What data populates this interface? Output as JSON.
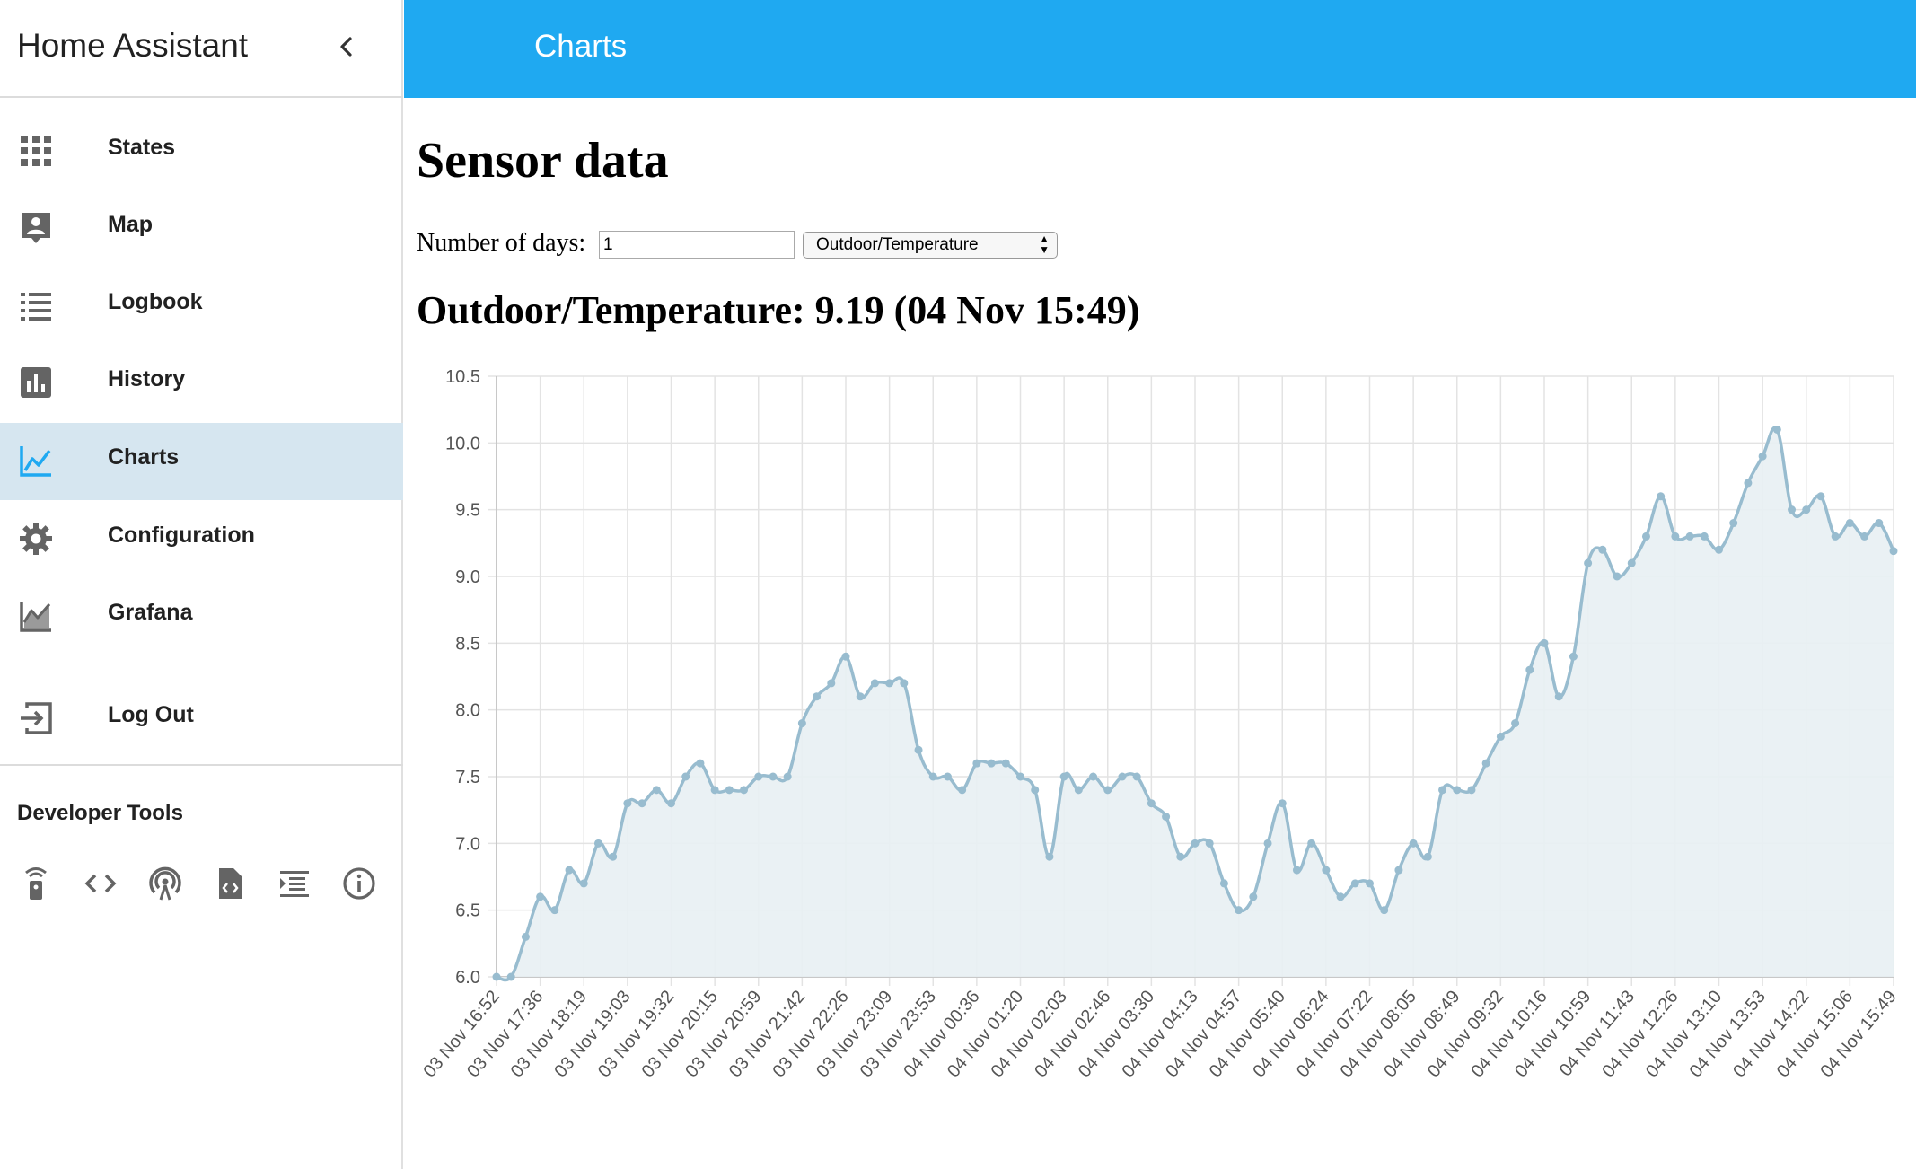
{
  "sidebar": {
    "title": "Home Assistant",
    "items": [
      {
        "label": "States",
        "icon": "grid-icon"
      },
      {
        "label": "Map",
        "icon": "map-person-icon"
      },
      {
        "label": "Logbook",
        "icon": "list-icon"
      },
      {
        "label": "History",
        "icon": "bar-chart-icon"
      },
      {
        "label": "Charts",
        "icon": "line-chart-icon",
        "active": true
      },
      {
        "label": "Configuration",
        "icon": "gear-icon"
      },
      {
        "label": "Grafana",
        "icon": "area-chart-icon"
      },
      {
        "label": "Log Out",
        "icon": "logout-icon"
      }
    ],
    "dev_tools_title": "Developer Tools",
    "dev_tools_icons": [
      "remote-icon",
      "code-icon",
      "broadcast-icon",
      "file-code-icon",
      "template-icon",
      "info-icon"
    ]
  },
  "topbar": {
    "title": "Charts"
  },
  "main": {
    "heading": "Sensor data",
    "days_label": "Number of days:",
    "days_value": "1",
    "selected_sensor": "Outdoor/Temperature",
    "reading_heading": "Outdoor/Temperature: 9.19 (04 Nov 15:49)"
  },
  "colors": {
    "accent": "#1fa9f1",
    "active_item_bg": "#d6e6f0",
    "line": "#98bccf",
    "fill": "#e8eff3"
  },
  "chart_data": {
    "type": "line",
    "ylim": [
      6.0,
      10.5
    ],
    "yticks": [
      "6.0",
      "6.5",
      "7.0",
      "7.5",
      "8.0",
      "8.5",
      "9.0",
      "9.5",
      "10.0",
      "10.5"
    ],
    "xticks": [
      "03 Nov 16:52",
      "03 Nov 17:36",
      "03 Nov 18:19",
      "03 Nov 19:03",
      "03 Nov 19:32",
      "03 Nov 20:15",
      "03 Nov 20:59",
      "03 Nov 21:42",
      "03 Nov 22:26",
      "03 Nov 23:09",
      "03 Nov 23:53",
      "04 Nov 00:36",
      "04 Nov 01:20",
      "04 Nov 02:03",
      "04 Nov 02:46",
      "04 Nov 03:30",
      "04 Nov 04:13",
      "04 Nov 04:57",
      "04 Nov 05:40",
      "04 Nov 06:24",
      "04 Nov 07:22",
      "04 Nov 08:05",
      "04 Nov 08:49",
      "04 Nov 09:32",
      "04 Nov 10:16",
      "04 Nov 10:59",
      "04 Nov 11:43",
      "04 Nov 12:26",
      "04 Nov 13:10",
      "04 Nov 13:53",
      "04 Nov 14:22",
      "04 Nov 15:06",
      "04 Nov 15:49"
    ],
    "grid": true,
    "fill": true,
    "values": [
      6.0,
      6.0,
      6.3,
      6.6,
      6.5,
      6.8,
      6.7,
      7.0,
      6.9,
      7.3,
      7.3,
      7.4,
      7.3,
      7.5,
      7.6,
      7.4,
      7.4,
      7.4,
      7.5,
      7.5,
      7.5,
      7.9,
      8.1,
      8.2,
      8.4,
      8.1,
      8.2,
      8.2,
      8.2,
      7.7,
      7.5,
      7.5,
      7.4,
      7.6,
      7.6,
      7.6,
      7.5,
      7.4,
      6.9,
      7.5,
      7.4,
      7.5,
      7.4,
      7.5,
      7.5,
      7.3,
      7.2,
      6.9,
      7.0,
      7.0,
      6.7,
      6.5,
      6.6,
      7.0,
      7.3,
      6.8,
      7.0,
      6.8,
      6.6,
      6.7,
      6.7,
      6.5,
      6.8,
      7.0,
      6.9,
      7.4,
      7.4,
      7.4,
      7.6,
      7.8,
      7.9,
      8.3,
      8.5,
      8.1,
      8.4,
      9.1,
      9.2,
      9.0,
      9.1,
      9.3,
      9.6,
      9.3,
      9.3,
      9.3,
      9.2,
      9.4,
      9.7,
      9.9,
      10.1,
      9.5,
      9.5,
      9.6,
      9.3,
      9.4,
      9.3,
      9.4,
      9.19
    ]
  }
}
